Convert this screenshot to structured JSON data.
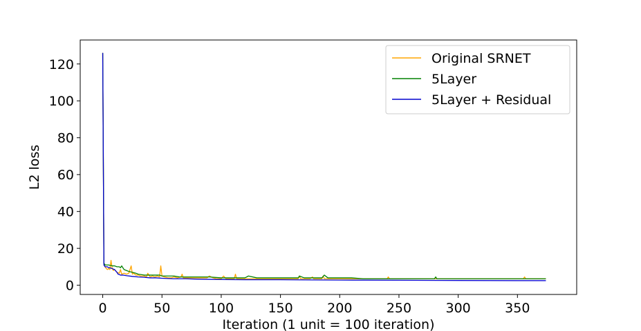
{
  "chart_data": {
    "type": "line",
    "title": "",
    "xlabel": "Iteration (1 unit = 100 iteration)",
    "ylabel": "L2 loss",
    "xlim": [
      -19,
      400
    ],
    "ylim": [
      -5,
      133
    ],
    "xticks": [
      0,
      50,
      100,
      150,
      200,
      250,
      300,
      350
    ],
    "yticks": [
      0,
      20,
      40,
      60,
      80,
      100,
      120
    ],
    "grid": false,
    "legend_position": "top-right",
    "series": [
      {
        "name": "Original SRNET",
        "color": "#FFA500",
        "x": [
          0,
          1,
          2,
          3,
          4,
          5,
          6,
          7,
          8,
          9,
          10,
          12,
          14,
          15,
          16,
          18,
          20,
          22,
          24,
          25,
          26,
          28,
          30,
          32,
          35,
          37,
          38,
          40,
          42,
          44,
          46,
          48,
          49,
          50,
          52,
          55,
          58,
          60,
          63,
          66,
          67,
          68,
          70,
          73,
          76,
          80,
          84,
          88,
          90,
          93,
          96,
          100,
          102,
          104,
          108,
          111,
          112,
          113,
          116,
          120,
          125,
          130,
          140,
          150,
          155,
          160,
          165,
          166,
          167,
          170,
          175,
          177,
          178,
          180,
          185,
          186,
          187,
          190,
          200,
          210,
          220,
          230,
          240,
          241,
          242,
          250,
          260,
          270,
          280,
          290,
          300,
          310,
          320,
          330,
          340,
          350,
          355,
          356,
          357,
          360,
          370,
          374
        ],
        "y": [
          126,
          12,
          10,
          9,
          8.5,
          9,
          8.5,
          13.5,
          9,
          8,
          8.5,
          7,
          6.5,
          8.5,
          6,
          6.5,
          6,
          6.5,
          10.5,
          6,
          6.5,
          5.5,
          5.5,
          5,
          5,
          4.5,
          6.5,
          4.5,
          5,
          4.5,
          5,
          4.5,
          10.5,
          5,
          4.5,
          4,
          4,
          4.5,
          4,
          4.5,
          6,
          4,
          4,
          4,
          4,
          4,
          4,
          4,
          5,
          4,
          3.5,
          3.5,
          5,
          3.5,
          3.5,
          3.5,
          6,
          3.5,
          3.5,
          3.5,
          3.5,
          3.5,
          3.5,
          3.5,
          3.5,
          3.5,
          3.5,
          5,
          3.5,
          3.5,
          3.5,
          4.5,
          3.5,
          3.5,
          3.5,
          5,
          3.5,
          3.5,
          3.5,
          3.5,
          3.5,
          3.5,
          3.5,
          4.5,
          3.5,
          3.5,
          3.5,
          3.5,
          3.5,
          3.5,
          3.5,
          3.5,
          3.5,
          3.5,
          3.5,
          3.5,
          3.5,
          4.5,
          3.5,
          3.5,
          3.5,
          3.5
        ]
      },
      {
        "name": "5Layer",
        "color": "#008000",
        "x": [
          0,
          1,
          2,
          5,
          8,
          10,
          12,
          14,
          15,
          16,
          18,
          20,
          22,
          25,
          28,
          30,
          35,
          40,
          45,
          48,
          50,
          55,
          60,
          65,
          70,
          75,
          80,
          90,
          100,
          110,
          120,
          123,
          130,
          140,
          150,
          165,
          166,
          170,
          180,
          185,
          187,
          190,
          200,
          210,
          220,
          240,
          250,
          260,
          270,
          280,
          281,
          282,
          290,
          300,
          320,
          340,
          350,
          360,
          374
        ],
        "y": [
          126,
          12,
          11,
          11,
          10.5,
          10.5,
          10,
          10,
          9.5,
          10.5,
          8.5,
          8,
          7.5,
          7,
          6.5,
          6,
          5.5,
          5.5,
          5.5,
          5.5,
          5,
          5,
          5,
          4.5,
          4.5,
          4.5,
          4.5,
          4.5,
          4,
          4,
          4,
          5,
          4,
          4,
          4,
          4,
          5,
          4,
          4,
          4,
          5.5,
          4,
          4,
          4,
          3.5,
          3.5,
          3.5,
          3.5,
          3.5,
          3.5,
          4.5,
          3.5,
          3.5,
          3.5,
          3.5,
          3.5,
          3.5,
          3.5,
          3.5
        ]
      },
      {
        "name": "5Layer + Residual",
        "color": "#0000CD",
        "x": [
          0,
          1,
          2,
          3,
          4,
          5,
          6,
          8,
          10,
          12,
          13,
          14,
          15,
          17,
          20,
          25,
          30,
          35,
          40,
          45,
          50,
          60,
          70,
          80,
          90,
          100,
          120,
          150,
          170,
          200,
          250,
          300,
          350,
          374
        ],
        "y": [
          126,
          11,
          10,
          10,
          10,
          9.5,
          9.5,
          9,
          8.5,
          7,
          6,
          5.8,
          5.5,
          5.5,
          5.2,
          4.8,
          4.5,
          4.3,
          4,
          4,
          3.8,
          3.5,
          3.5,
          3.3,
          3.2,
          3.1,
          3,
          3,
          2.9,
          2.8,
          2.7,
          2.6,
          2.5,
          2.5
        ]
      }
    ]
  }
}
